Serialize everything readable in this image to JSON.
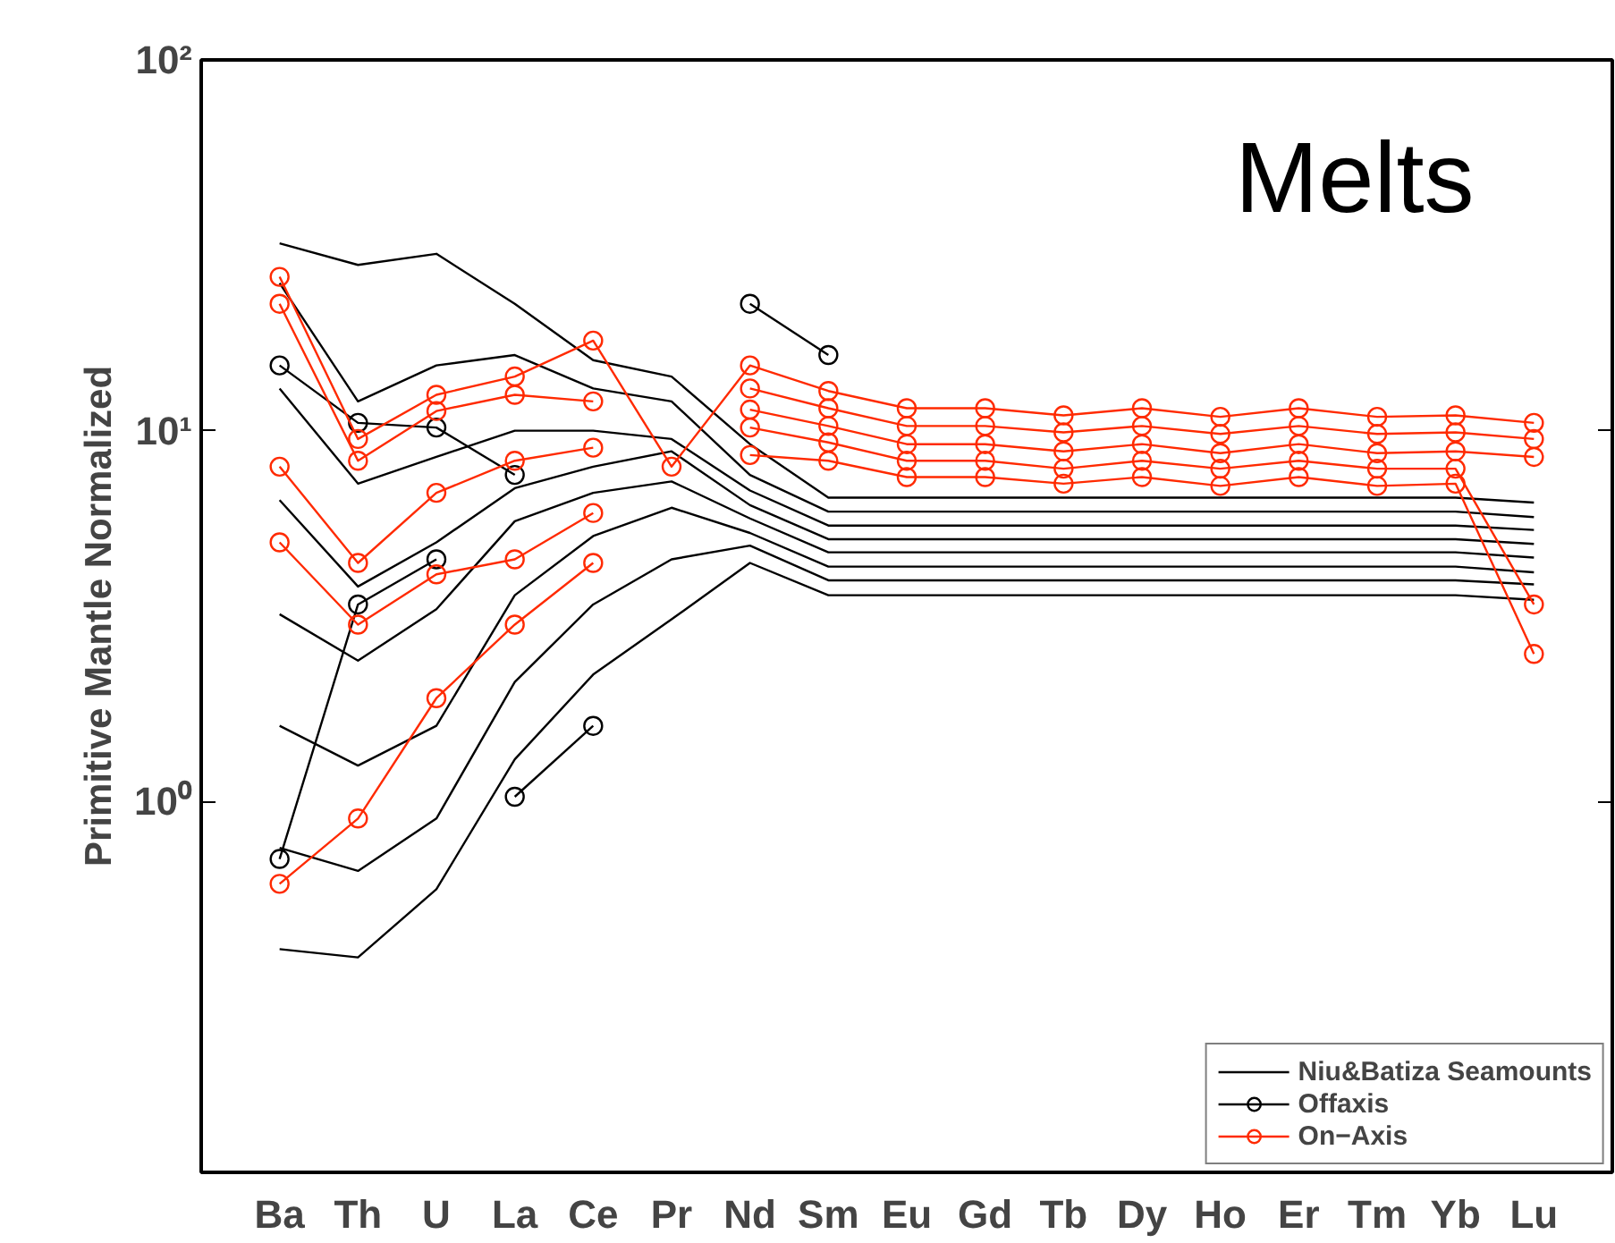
{
  "chart_data": {
    "type": "line",
    "ylabel": "Primitive Mantle Normalized",
    "annotations": [
      "Melts"
    ],
    "categories": [
      "Ba",
      "Th",
      "U",
      "La",
      "Ce",
      "Pr",
      "Nd",
      "Sm",
      "Eu",
      "Gd",
      "Tb",
      "Dy",
      "Ho",
      "Er",
      "Tm",
      "Yb",
      "Lu"
    ],
    "log": true,
    "ylim": [
      0.1,
      100
    ],
    "yticks": [
      {
        "value": 0.1,
        "label": null
      },
      {
        "value": 1,
        "label": "10⁰"
      },
      {
        "value": 10,
        "label": "10¹"
      },
      {
        "value": 100,
        "label": "10²"
      }
    ],
    "legend": "bottom right",
    "line_style": "solid",
    "series": [
      {
        "name": "Niu&Batiza Seamounts",
        "color": "#000000",
        "marker": "none",
        "values": [
          32,
          28,
          30,
          22,
          15.5,
          14,
          9.2,
          6.6,
          6.6,
          6.6,
          6.6,
          6.6,
          6.6,
          6.6,
          6.6,
          6.6,
          6.4
        ]
      },
      {
        "color": "#000000",
        "marker": "none",
        "values": [
          25,
          12,
          15,
          16,
          13,
          12,
          7.6,
          6.05,
          6.05,
          6.05,
          6.05,
          6.05,
          6.05,
          6.05,
          6.05,
          6.05,
          5.85
        ]
      },
      {
        "color": "#000000",
        "marker": "none",
        "values": [
          13,
          7.2,
          8.5,
          10,
          10,
          9.5,
          6.9,
          5.55,
          5.55,
          5.55,
          5.55,
          5.55,
          5.55,
          5.55,
          5.55,
          5.55,
          5.4
        ]
      },
      {
        "color": "#000000",
        "marker": "none",
        "values": [
          6.5,
          3.8,
          5,
          7,
          8,
          8.8,
          6.3,
          5.1,
          5.1,
          5.1,
          5.1,
          5.1,
          5.1,
          5.1,
          5.1,
          5.1,
          4.95
        ]
      },
      {
        "color": "#000000",
        "marker": "none",
        "values": [
          3.2,
          2.4,
          3.3,
          5.7,
          6.8,
          7.3,
          5.8,
          4.7,
          4.7,
          4.7,
          4.7,
          4.7,
          4.7,
          4.7,
          4.7,
          4.7,
          4.55
        ]
      },
      {
        "color": "#000000",
        "marker": "none",
        "values": [
          1.6,
          1.25,
          1.6,
          3.6,
          5.2,
          6.2,
          5.3,
          4.3,
          4.3,
          4.3,
          4.3,
          4.3,
          4.3,
          4.3,
          4.3,
          4.3,
          4.15
        ]
      },
      {
        "color": "#000000",
        "marker": "none",
        "values": [
          0.75,
          0.65,
          0.9,
          2.1,
          3.4,
          4.5,
          4.9,
          3.95,
          3.95,
          3.95,
          3.95,
          3.95,
          3.95,
          3.95,
          3.95,
          3.95,
          3.85
        ]
      },
      {
        "color": "#000000",
        "marker": "none",
        "values": [
          0.4,
          0.38,
          0.58,
          1.3,
          2.2,
          3.1,
          4.4,
          3.6,
          3.6,
          3.6,
          3.6,
          3.6,
          3.6,
          3.6,
          3.6,
          3.6,
          3.5
        ]
      },
      {
        "name": "Offaxis",
        "color": "#000000",
        "marker": "circle",
        "values": [
          15,
          10.5,
          10.2,
          7.6,
          null,
          null,
          null,
          null,
          null,
          null,
          null,
          null,
          null,
          null,
          null,
          null,
          null
        ]
      },
      {
        "color": "#000000",
        "marker": "circle",
        "values": [
          0.7,
          3.4,
          4.5,
          null,
          null,
          null,
          null,
          null,
          null,
          null,
          null,
          null,
          null,
          null,
          null,
          null,
          null
        ]
      },
      {
        "color": "#000000",
        "marker": "circle",
        "values": [
          null,
          null,
          null,
          1.03,
          1.6,
          null,
          null,
          null,
          null,
          null,
          null,
          null,
          null,
          null,
          null,
          null,
          null
        ]
      },
      {
        "color": "#000000",
        "marker": "circle",
        "values": [
          null,
          null,
          null,
          null,
          null,
          null,
          22,
          16,
          null,
          null,
          null,
          null,
          null,
          null,
          null,
          null,
          null
        ]
      },
      {
        "name": "On−Axis",
        "color": "#ff2a00",
        "marker": "circle",
        "values": [
          26,
          9.5,
          12.5,
          14,
          17.5,
          8.0,
          15,
          12.8,
          11.5,
          11.5,
          11.0,
          11.5,
          10.9,
          11.5,
          10.9,
          11.0,
          10.5
        ]
      },
      {
        "color": "#ff2a00",
        "marker": "circle",
        "values": [
          22,
          8.3,
          11.3,
          12.5,
          12,
          null,
          13,
          11.5,
          10.3,
          10.3,
          9.9,
          10.3,
          9.8,
          10.3,
          9.8,
          9.9,
          9.5
        ]
      },
      {
        "color": "#ff2a00",
        "marker": "circle",
        "values": [
          8,
          4.4,
          6.8,
          8.3,
          9,
          null,
          11.4,
          10.3,
          9.2,
          9.2,
          8.8,
          9.2,
          8.7,
          9.2,
          8.7,
          8.8,
          8.5
        ]
      },
      {
        "color": "#ff2a00",
        "marker": "circle",
        "values": [
          5,
          3,
          4.1,
          4.5,
          6.0,
          null,
          10.2,
          9.3,
          8.3,
          8.3,
          7.9,
          8.3,
          7.9,
          8.3,
          7.9,
          7.9,
          3.4
        ]
      },
      {
        "color": "#ff2a00",
        "marker": "circle",
        "values": [
          0.6,
          0.9,
          1.9,
          3.0,
          4.4,
          null,
          8.6,
          8.3,
          7.5,
          7.5,
          7.2,
          7.5,
          7.1,
          7.5,
          7.1,
          7.2,
          2.5
        ]
      }
    ]
  }
}
